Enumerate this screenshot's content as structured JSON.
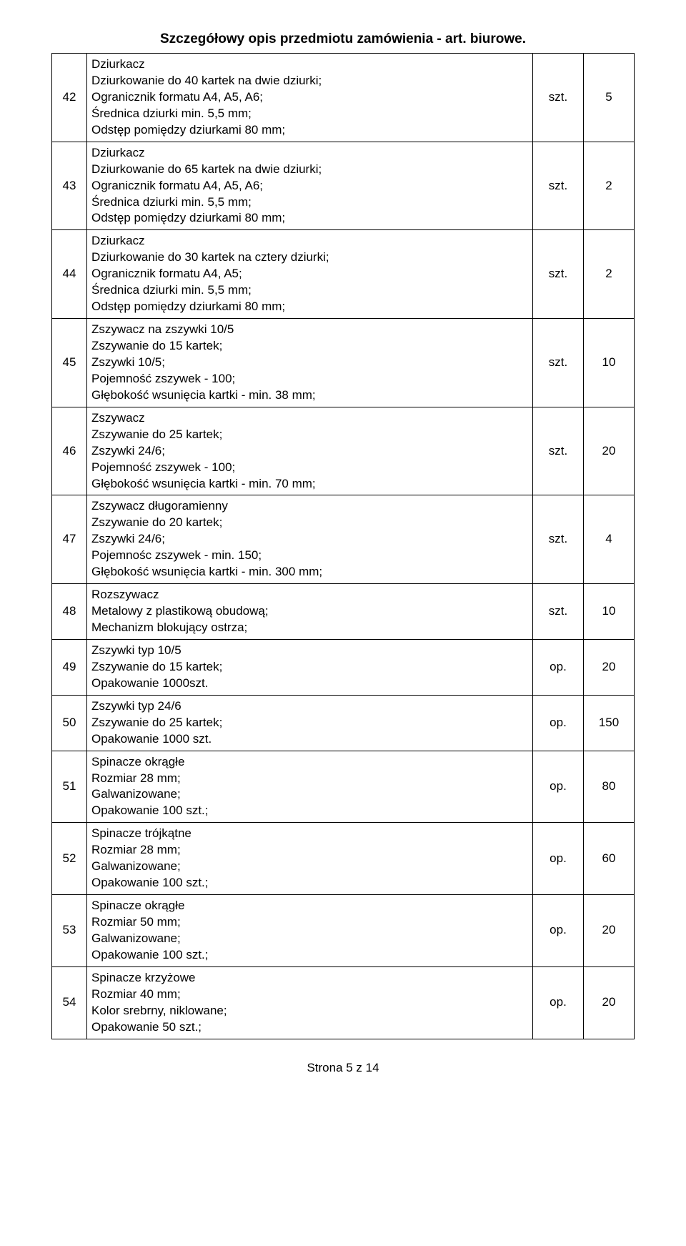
{
  "title": "Szczegółowy opis przedmiotu zamówienia - art. biurowe.",
  "footer": "Strona 5 z 14",
  "rows": [
    {
      "num": "42",
      "lines": [
        "Dziurkacz",
        "Dziurkowanie do 40 kartek na dwie dziurki;",
        "Ogranicznik formatu A4, A5, A6;",
        "Średnica dziurki min. 5,5 mm;",
        "Odstęp pomiędzy dziurkami 80 mm;"
      ],
      "unit": "szt.",
      "qty": "5"
    },
    {
      "num": "43",
      "lines": [
        "Dziurkacz",
        "Dziurkowanie do 65 kartek na dwie dziurki;",
        "Ogranicznik formatu A4, A5, A6;",
        "Średnica dziurki min. 5,5 mm;",
        "Odstęp pomiędzy dziurkami 80 mm;"
      ],
      "unit": "szt.",
      "qty": "2"
    },
    {
      "num": "44",
      "lines": [
        "Dziurkacz",
        "Dziurkowanie do 30 kartek na cztery dziurki;",
        "Ogranicznik formatu A4, A5;",
        "Średnica dziurki min. 5,5 mm;",
        "Odstęp pomiędzy dziurkami 80 mm;"
      ],
      "unit": "szt.",
      "qty": "2"
    },
    {
      "num": "45",
      "lines": [
        "Zszywacz na zszywki 10/5",
        "Zszywanie do 15 kartek;",
        "Zszywki 10/5;",
        "Pojemność zszywek - 100;",
        "Głębokość wsunięcia kartki - min. 38 mm;"
      ],
      "unit": "szt.",
      "qty": "10"
    },
    {
      "num": "46",
      "lines": [
        "Zszywacz",
        "Zszywanie do 25 kartek;",
        "Zszywki 24/6;",
        "Pojemność zszywek - 100;",
        "Głębokość wsunięcia kartki - min. 70 mm;"
      ],
      "unit": "szt.",
      "qty": "20"
    },
    {
      "num": "47",
      "lines": [
        "Zszywacz długoramienny",
        "Zszywanie do 20 kartek;",
        "Zszywki 24/6;",
        "Pojemnośc zszywek - min. 150;",
        "Głębokość wsunięcia kartki - min. 300 mm;"
      ],
      "unit": "szt.",
      "qty": "4"
    },
    {
      "num": "48",
      "lines": [
        "Rozszywacz",
        "Metalowy z plastikową obudową;",
        "Mechanizm blokujący ostrza;"
      ],
      "unit": "szt.",
      "qty": "10"
    },
    {
      "num": "49",
      "lines": [
        "Zszywki typ 10/5",
        "Zszywanie do 15 kartek;",
        "Opakowanie 1000szt."
      ],
      "unit": "op.",
      "qty": "20"
    },
    {
      "num": "50",
      "lines": [
        "Zszywki typ 24/6",
        "Zszywanie do 25 kartek;",
        "Opakowanie 1000 szt."
      ],
      "unit": "op.",
      "qty": "150"
    },
    {
      "num": "51",
      "lines": [
        "Spinacze okrągłe",
        "Rozmiar 28 mm;",
        "Galwanizowane;",
        "Opakowanie 100 szt.;"
      ],
      "unit": "op.",
      "qty": "80"
    },
    {
      "num": "52",
      "lines": [
        "Spinacze trójkątne",
        "Rozmiar 28 mm;",
        "Galwanizowane;",
        "Opakowanie 100 szt.;"
      ],
      "unit": "op.",
      "qty": "60"
    },
    {
      "num": "53",
      "lines": [
        "Spinacze okrągłe",
        "Rozmiar 50 mm;",
        "Galwanizowane;",
        "Opakowanie 100 szt.;"
      ],
      "unit": "op.",
      "qty": "20"
    },
    {
      "num": "54",
      "lines": [
        "Spinacze krzyżowe",
        "Rozmiar 40 mm;",
        "Kolor srebrny, niklowane;",
        "Opakowanie 50 szt.;"
      ],
      "unit": "op.",
      "qty": "20"
    }
  ]
}
